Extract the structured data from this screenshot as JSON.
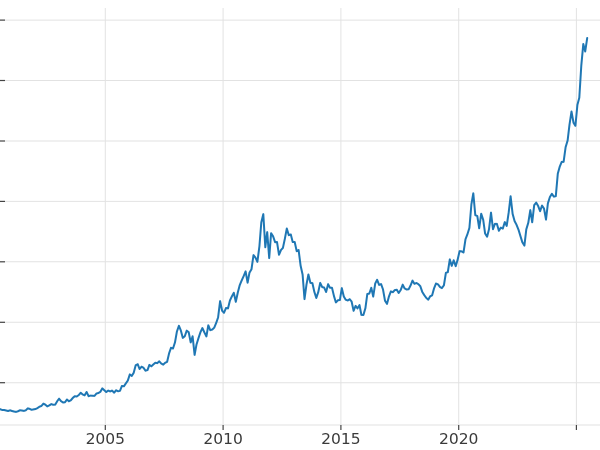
{
  "page": {
    "background": "#ffffff"
  },
  "chart_data": {
    "type": "line",
    "title": "",
    "xlabel": "",
    "ylabel": "",
    "legend": null,
    "grid": true,
    "line_color": "#1f77b4",
    "line_width": 2,
    "grid_color": "#e2e2e2",
    "tick_color": "#444444",
    "tick_label_color": "#3a3a3a",
    "background": "#ffffff",
    "xlim": [
      2000.53,
      2026.0
    ],
    "ylim": [
      150,
      3600
    ],
    "xticks": [
      {
        "value": 2005,
        "label": "2005"
      },
      {
        "value": 2010,
        "label": "2010"
      },
      {
        "value": 2015,
        "label": "2015"
      },
      {
        "value": 2020,
        "label": "2020"
      }
    ],
    "xgrid_extra": [
      2025
    ],
    "ygrid": [
      500,
      1000,
      1500,
      2000,
      2500,
      3000,
      3500
    ],
    "x_start": 2000.54,
    "x_step": 0.0833333,
    "values": [
      281,
      274,
      274,
      270,
      266,
      272,
      266,
      262,
      258,
      263,
      272,
      270,
      267,
      272,
      287,
      283,
      276,
      279,
      282,
      290,
      301,
      308,
      326,
      318,
      304,
      312,
      323,
      317,
      319,
      347,
      368,
      347,
      336,
      339,
      361,
      346,
      355,
      375,
      388,
      386,
      398,
      416,
      402,
      396,
      423,
      388,
      393,
      392,
      391,
      410,
      415,
      425,
      453,
      438,
      422,
      435,
      428,
      435,
      417,
      437,
      429,
      433,
      473,
      470,
      495,
      517,
      569,
      556,
      582,
      644,
      653,
      613,
      632,
      623,
      599,
      604,
      647,
      636,
      651,
      665,
      662,
      677,
      659,
      650,
      665,
      672,
      743,
      789,
      783,
      834,
      923,
      971,
      933,
      871,
      885,
      930,
      918,
      833,
      884,
      730,
      816,
      869,
      919,
      952,
      916,
      883,
      975,
      934,
      939,
      955,
      995,
      1040,
      1175,
      1096,
      1078,
      1118,
      1115,
      1179,
      1215,
      1244,
      1169,
      1246,
      1307,
      1346,
      1383,
      1421,
      1327,
      1411,
      1439,
      1556,
      1536,
      1500,
      1628,
      1826,
      1895,
      1620,
      1746,
      1531,
      1737,
      1711,
      1662,
      1664,
      1558,
      1598,
      1615,
      1692,
      1776,
      1720,
      1726,
      1664,
      1664,
      1588,
      1598,
      1469,
      1394,
      1192,
      1313,
      1395,
      1326,
      1324,
      1253,
      1201,
      1251,
      1326,
      1291,
      1288,
      1250,
      1315,
      1285,
      1285,
      1216,
      1164,
      1182,
      1184,
      1283,
      1213,
      1187,
      1180,
      1191,
      1172,
      1095,
      1135,
      1115,
      1142,
      1061,
      1060,
      1116,
      1234,
      1237,
      1285,
      1212,
      1320,
      1351,
      1309,
      1316,
      1272,
      1178,
      1152,
      1212,
      1255,
      1249,
      1266,
      1269,
      1242,
      1267,
      1311,
      1280,
      1271,
      1273,
      1303,
      1345,
      1318,
      1325,
      1315,
      1298,
      1250,
      1224,
      1202,
      1187,
      1215,
      1222,
      1282,
      1321,
      1313,
      1292,
      1283,
      1306,
      1409,
      1414,
      1520,
      1466,
      1513,
      1464,
      1517,
      1589,
      1586,
      1577,
      1687,
      1730,
      1781,
      1976,
      2067,
      1886,
      1879,
      1777,
      1898,
      1848,
      1734,
      1708,
      1769,
      1907,
      1770,
      1814,
      1814,
      1757,
      1783,
      1775,
      1829,
      1797,
      1909,
      2043,
      1897,
      1837,
      1807,
      1766,
      1711,
      1661,
      1634,
      1769,
      1824,
      1928,
      1827,
      1969,
      1990,
      1963,
      1919,
      1965,
      1940,
      1849,
      1984,
      2036,
      2063,
      2040,
      2044,
      2230,
      2286,
      2327,
      2327,
      2448,
      2503,
      2635,
      2744,
      2651,
      2625,
      2798,
      2858,
      3124,
      3302,
      3240,
      3352
    ]
  }
}
